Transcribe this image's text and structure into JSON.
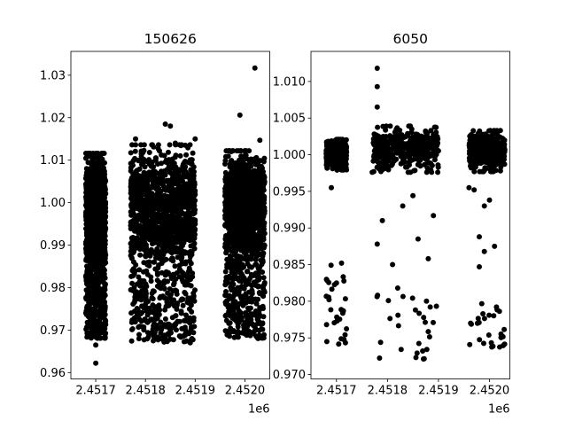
{
  "chart_data": [
    {
      "type": "scatter",
      "title": "150626",
      "xlabel": "",
      "ylabel": "",
      "x_offset_label": "1e6",
      "xlim": [
        2.45165,
        2.45205
      ],
      "ylim": [
        0.9585,
        1.0356
      ],
      "xticks": [
        2.4517,
        2.4518,
        2.4519,
        2.452
      ],
      "xtick_labels": [
        "2.4517",
        "2.4518",
        "2.4519",
        "2.4520"
      ],
      "yticks": [
        0.96,
        0.97,
        0.98,
        0.99,
        1.0,
        1.01,
        1.02,
        1.03
      ],
      "ytick_labels": [
        "0.96",
        "0.97",
        "0.98",
        "0.99",
        "1.00",
        "1.01",
        "1.02",
        "1.03"
      ],
      "grid": false,
      "marker_color": "#000000",
      "clusters": [
        {
          "x_range": [
            2.45168,
            2.45172
          ],
          "y_core": [
            0.99,
            1.008
          ],
          "y_tail": [
            0.968,
            0.99
          ]
        },
        {
          "x_range": [
            2.45177,
            2.4519
          ],
          "y_core": [
            0.992,
            1.01
          ],
          "y_tail": [
            0.967,
            0.992
          ]
        },
        {
          "x_range": [
            2.45196,
            2.45204
          ],
          "y_core": [
            0.993,
            1.009
          ],
          "y_tail": [
            0.968,
            0.993
          ]
        }
      ],
      "outliers": [
        {
          "x": 2.4517,
          "y": 0.9622
        },
        {
          "x": 2.4517,
          "y": 0.9665
        },
        {
          "x": 2.45184,
          "y": 1.0185
        },
        {
          "x": 2.45185,
          "y": 1.018
        },
        {
          "x": 2.45188,
          "y": 1.0135
        },
        {
          "x": 2.4519,
          "y": 1.015
        },
        {
          "x": 2.45178,
          "y": 1.015
        },
        {
          "x": 2.45186,
          "y": 1.014
        },
        {
          "x": 2.45199,
          "y": 1.0206
        },
        {
          "x": 2.45202,
          "y": 1.0317
        },
        {
          "x": 2.45203,
          "y": 1.0147
        },
        {
          "x": 2.45189,
          "y": 0.967
        }
      ]
    },
    {
      "type": "scatter",
      "title": "6050",
      "xlabel": "",
      "ylabel": "",
      "x_offset_label": "1e6",
      "xlim": [
        2.45165,
        2.45204
      ],
      "ylim": [
        0.9694,
        1.0141
      ],
      "xticks": [
        2.4517,
        2.4518,
        2.4519,
        2.452
      ],
      "xtick_labels": [
        "2.4517",
        "2.4518",
        "2.4519",
        "2.4520"
      ],
      "yticks": [
        0.97,
        0.975,
        0.98,
        0.985,
        0.99,
        0.995,
        1.0,
        1.005,
        1.01
      ],
      "ytick_labels": [
        "0.970",
        "0.975",
        "0.980",
        "0.985",
        "0.990",
        "0.995",
        "1.000",
        "1.005",
        "1.010"
      ],
      "grid": false,
      "marker_color": "#000000",
      "clusters": [
        {
          "x_range": [
            2.45168,
            2.45172
          ],
          "y_core": [
            0.9985,
            1.0015
          ],
          "y_tail": [
            0.974,
            0.985
          ]
        },
        {
          "x_range": [
            2.45177,
            2.4519
          ],
          "y_core": [
            0.9985,
            1.003
          ],
          "y_tail": [
            0.972,
            0.981
          ]
        },
        {
          "x_range": [
            2.45196,
            2.45203
          ],
          "y_core": [
            0.9985,
            1.0025
          ],
          "y_tail": [
            0.9735,
            0.98
          ]
        }
      ],
      "outliers": [
        {
          "x": 2.45178,
          "y": 1.0118
        },
        {
          "x": 2.45178,
          "y": 1.0093
        },
        {
          "x": 2.45178,
          "y": 1.0065
        },
        {
          "x": 2.45178,
          "y": 0.9878
        },
        {
          "x": 2.45179,
          "y": 0.991
        },
        {
          "x": 2.45169,
          "y": 0.9955
        },
        {
          "x": 2.45171,
          "y": 0.9852
        },
        {
          "x": 2.4517,
          "y": 0.9825
        },
        {
          "x": 2.45181,
          "y": 0.985
        },
        {
          "x": 2.45182,
          "y": 0.9818
        },
        {
          "x": 2.45183,
          "y": 0.993
        },
        {
          "x": 2.45185,
          "y": 0.9944
        },
        {
          "x": 2.45186,
          "y": 0.9885
        },
        {
          "x": 2.45189,
          "y": 0.9917
        },
        {
          "x": 2.45188,
          "y": 0.9858
        },
        {
          "x": 2.45198,
          "y": 0.9888
        },
        {
          "x": 2.45198,
          "y": 0.9847
        },
        {
          "x": 2.45199,
          "y": 0.993
        },
        {
          "x": 2.452,
          "y": 0.9938
        },
        {
          "x": 2.45199,
          "y": 0.9868
        },
        {
          "x": 2.45201,
          "y": 0.9875
        },
        {
          "x": 2.45196,
          "y": 0.9955
        },
        {
          "x": 2.45197,
          "y": 0.9952
        }
      ]
    }
  ]
}
